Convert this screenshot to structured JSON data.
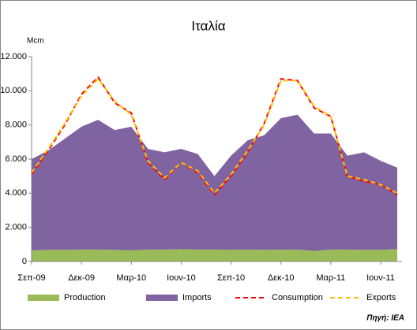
{
  "chart_data": {
    "type": "stacked_area_line",
    "title": "Ιταλία",
    "y_label": "Mcm",
    "source": "Πηγή: IEA",
    "categories": [
      "Σεπ-09",
      null,
      null,
      "Δεκ-09",
      null,
      null,
      "Μαρ-10",
      null,
      null,
      "Ιουν-10",
      null,
      null,
      "Σεπ-10",
      null,
      null,
      "Δεκ-10",
      null,
      null,
      "Μαρ-11",
      null,
      null,
      "Ιουν-11",
      null
    ],
    "ylim": [
      0,
      12000
    ],
    "yticks": [
      0,
      {
        "value": 2000,
        "label": "2.000"
      },
      {
        "value": 4000,
        "label": "4.000"
      },
      {
        "value": 6000,
        "label": "6.000"
      },
      {
        "value": 8000,
        "label": "8.000"
      },
      {
        "value": 10000,
        "label": "10.000"
      },
      {
        "value": 12000,
        "label": "12.000"
      }
    ],
    "grid": false,
    "legend": "bottom",
    "series": [
      {
        "name": "Production",
        "kind": "area",
        "color": "#9bbb59",
        "values": [
          650,
          680,
          680,
          700,
          700,
          680,
          650,
          700,
          700,
          720,
          700,
          700,
          690,
          700,
          680,
          690,
          700,
          620,
          700,
          700,
          680,
          680,
          720
        ]
      },
      {
        "name": "Imports",
        "kind": "area",
        "color": "#8064a2",
        "values": [
          5350,
          5820,
          6520,
          7200,
          7600,
          7020,
          7250,
          5900,
          5700,
          5880,
          5600,
          4300,
          5510,
          6400,
          6720,
          7710,
          7900,
          6880,
          6800,
          5500,
          5720,
          5220,
          4780
        ]
      },
      {
        "name": "Consumption",
        "kind": "line",
        "color": "#ff0000",
        "values": [
          5100,
          6500,
          8000,
          9800,
          10800,
          9300,
          8700,
          5800,
          4800,
          5800,
          5200,
          3900,
          5000,
          6400,
          8100,
          10700,
          10600,
          9000,
          8500,
          5000,
          4700,
          4500,
          3900
        ]
      },
      {
        "name": "Exports",
        "kind": "line",
        "color": "#ffc000",
        "values": [
          5200,
          6600,
          8100,
          9700,
          10700,
          9400,
          8600,
          5900,
          4900,
          5800,
          5300,
          4000,
          5100,
          6500,
          8000,
          10600,
          10600,
          9100,
          8500,
          5000,
          4800,
          4500,
          4000
        ]
      }
    ]
  }
}
